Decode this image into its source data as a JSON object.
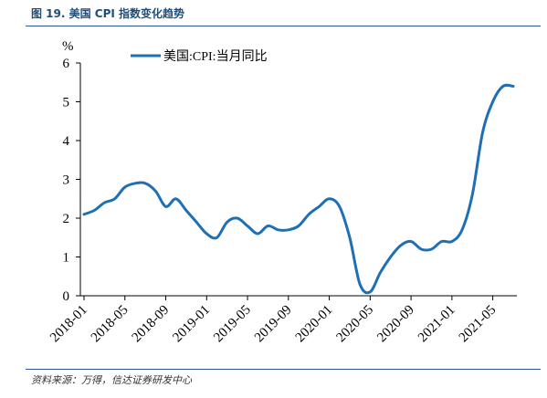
{
  "figure_title": "图 19. 美国 CPI 指数变化趋势",
  "source_note": "资料来源：万得，信达证券研发中心",
  "colors": {
    "line": "#1f6fb5",
    "rule": "#2f5597",
    "title": "#1f4e79"
  },
  "chart_data": {
    "type": "line",
    "unit_label": "%",
    "ylim": [
      0,
      6
    ],
    "yticks": [
      "0",
      "1",
      "2",
      "3",
      "4",
      "5",
      "6"
    ],
    "x_tick_labels": [
      "2018-01",
      "2018-05",
      "2018-09",
      "2019-01",
      "2019-05",
      "2019-09",
      "2020-01",
      "2020-05",
      "2020-09",
      "2021-01",
      "2021-05"
    ],
    "legend_position": "top-left",
    "grid": false,
    "series": [
      {
        "name": "美国:CPI:当月同比",
        "x": [
          "2018-01",
          "2018-02",
          "2018-03",
          "2018-04",
          "2018-05",
          "2018-06",
          "2018-07",
          "2018-08",
          "2018-09",
          "2018-10",
          "2018-11",
          "2018-12",
          "2019-01",
          "2019-02",
          "2019-03",
          "2019-04",
          "2019-05",
          "2019-06",
          "2019-07",
          "2019-08",
          "2019-09",
          "2019-10",
          "2019-11",
          "2019-12",
          "2020-01",
          "2020-02",
          "2020-03",
          "2020-04",
          "2020-05",
          "2020-06",
          "2020-07",
          "2020-08",
          "2020-09",
          "2020-10",
          "2020-11",
          "2020-12",
          "2021-01",
          "2021-02",
          "2021-03",
          "2021-04",
          "2021-05",
          "2021-06",
          "2021-07"
        ],
        "values": [
          2.1,
          2.2,
          2.4,
          2.5,
          2.8,
          2.9,
          2.9,
          2.7,
          2.3,
          2.5,
          2.2,
          1.9,
          1.6,
          1.5,
          1.9,
          2.0,
          1.8,
          1.6,
          1.8,
          1.7,
          1.7,
          1.8,
          2.1,
          2.3,
          2.5,
          2.3,
          1.5,
          0.3,
          0.1,
          0.6,
          1.0,
          1.3,
          1.4,
          1.2,
          1.2,
          1.4,
          1.4,
          1.7,
          2.6,
          4.2,
          5.0,
          5.4,
          5.4
        ]
      }
    ]
  }
}
